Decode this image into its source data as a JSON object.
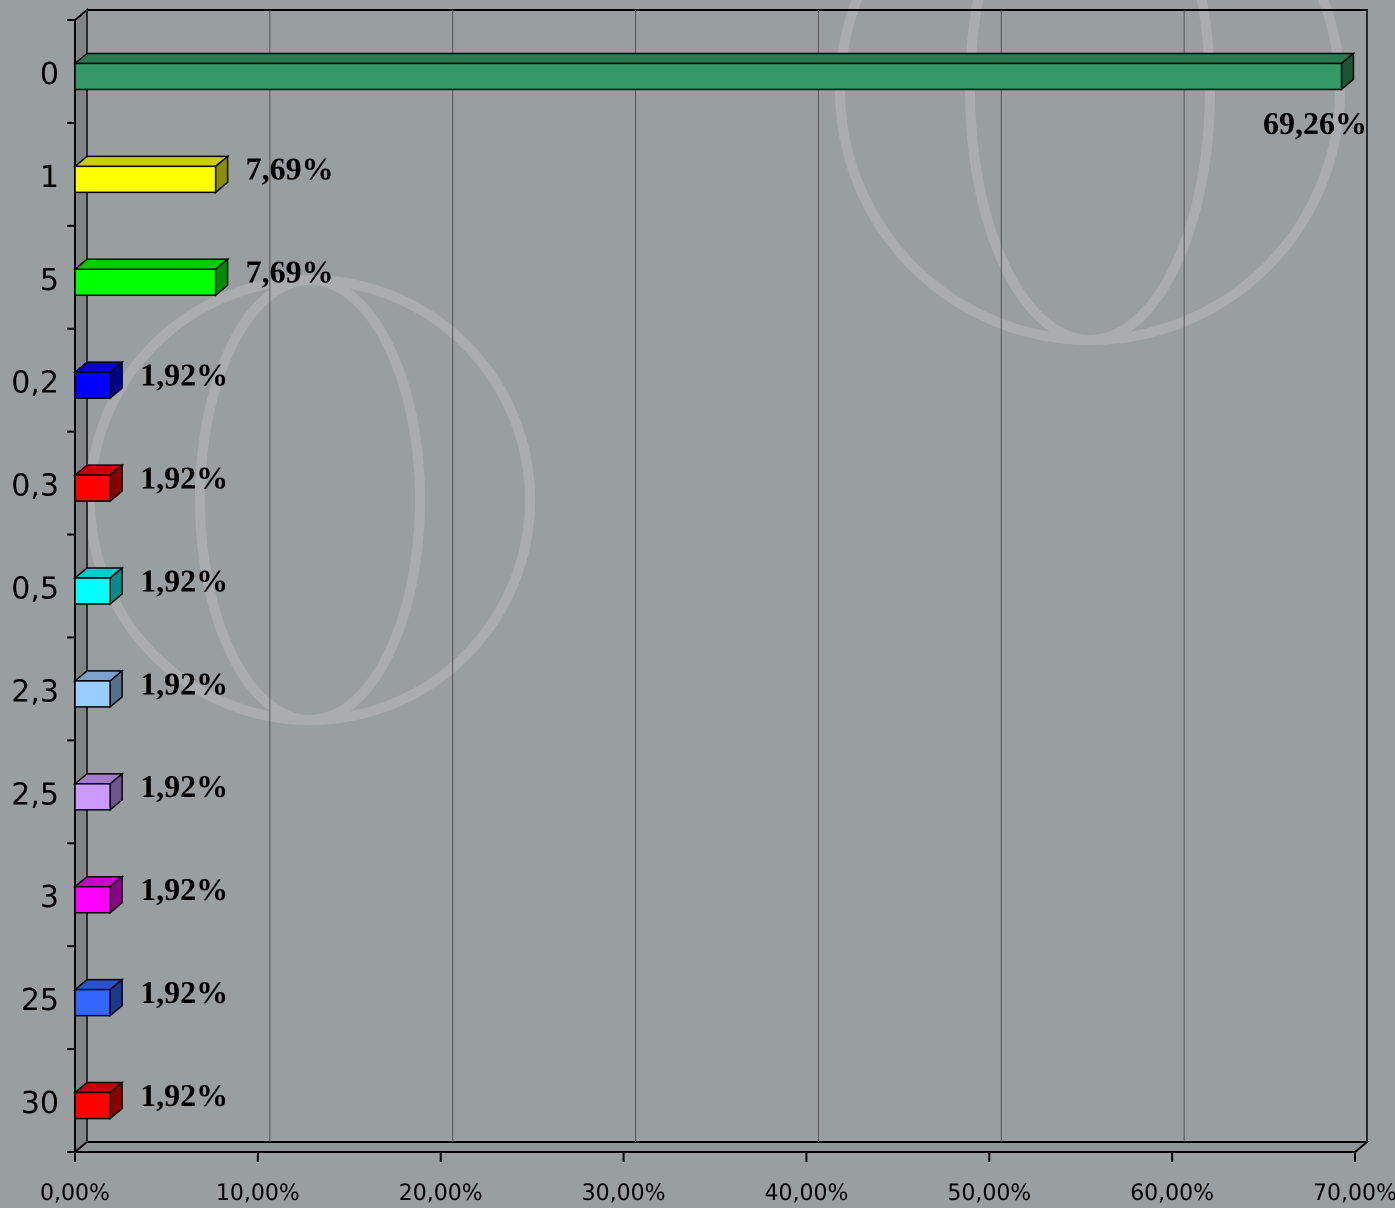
{
  "chart_data": {
    "type": "bar",
    "orientation": "horizontal",
    "categories": [
      "0",
      "1",
      "5",
      "0,2",
      "0,3",
      "0,5",
      "2,3",
      "2,5",
      "3",
      "25",
      "30"
    ],
    "values": [
      69.26,
      7.69,
      7.69,
      1.92,
      1.92,
      1.92,
      1.92,
      1.92,
      1.92,
      1.92,
      1.92
    ],
    "value_labels": [
      "69,26%",
      "7,69%",
      "7,69%",
      "1,92%",
      "1,92%",
      "1,92%",
      "1,92%",
      "1,92%",
      "1,92%",
      "1,92%",
      "1,92%"
    ],
    "colors": [
      "#339966",
      "#ffff00",
      "#00ff00",
      "#0000ff",
      "#ff0000",
      "#00ffff",
      "#99ccff",
      "#cc99ff",
      "#ff00ff",
      "#3366ff",
      "#ff0000"
    ],
    "xlim": [
      0,
      70
    ],
    "xticks": [
      {
        "value": 0,
        "label": "0,00%"
      },
      {
        "value": 10,
        "label": "10,00%"
      },
      {
        "value": 20,
        "label": "20,00%"
      },
      {
        "value": 30,
        "label": "30,00%"
      },
      {
        "value": 40,
        "label": "40,00%"
      },
      {
        "value": 50,
        "label": "50,00%"
      },
      {
        "value": 60,
        "label": "60,00%"
      },
      {
        "value": 70,
        "label": "70,00%"
      }
    ],
    "grid": true
  }
}
